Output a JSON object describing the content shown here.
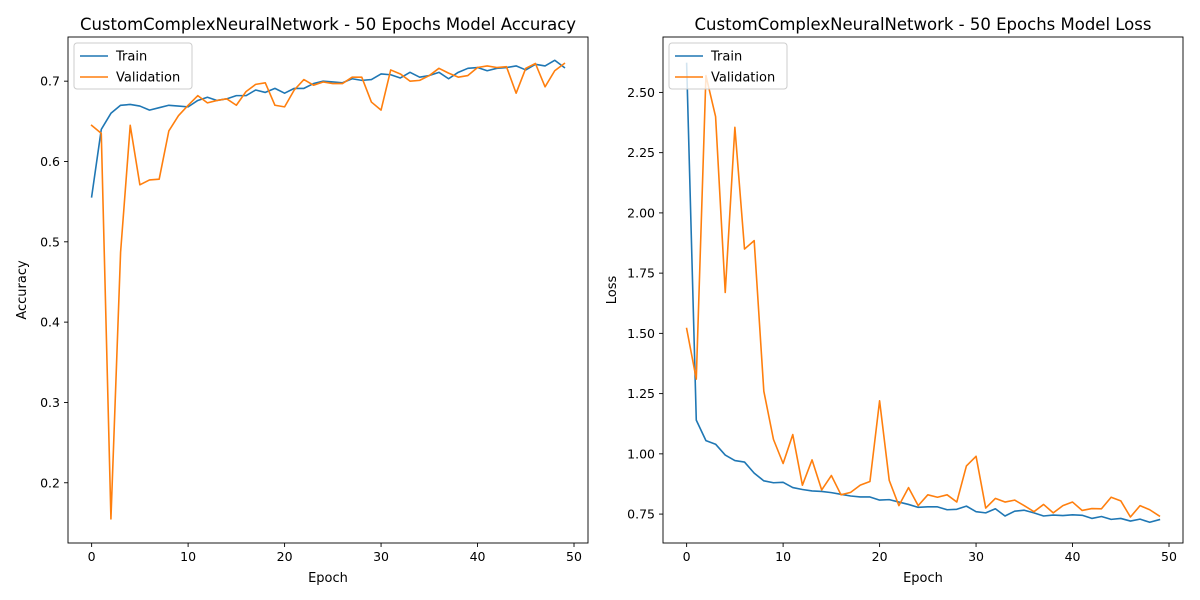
{
  "chart_data": [
    {
      "type": "line",
      "title": "CustomComplexNeuralNetwork - 50 Epochs Model Accuracy",
      "xlabel": "Epoch",
      "ylabel": "Accuracy",
      "xlim": [
        -2.45,
        51.45
      ],
      "ylim": [
        0.125,
        0.755
      ],
      "xticks": [
        0,
        10,
        20,
        30,
        40,
        50
      ],
      "xtick_labels": [
        "0",
        "10",
        "20",
        "30",
        "40",
        "50"
      ],
      "yticks": [
        0.2,
        0.3,
        0.4,
        0.5,
        0.6,
        0.7
      ],
      "ytick_labels": [
        "0.2",
        "0.3",
        "0.4",
        "0.5",
        "0.6",
        "0.7"
      ],
      "grid": false,
      "legend_position": "upper-left",
      "x": [
        0,
        1,
        2,
        3,
        4,
        5,
        6,
        7,
        8,
        9,
        10,
        11,
        12,
        13,
        14,
        15,
        16,
        17,
        18,
        19,
        20,
        21,
        22,
        23,
        24,
        25,
        26,
        27,
        28,
        29,
        30,
        31,
        32,
        33,
        34,
        35,
        36,
        37,
        38,
        39,
        40,
        41,
        42,
        43,
        44,
        45,
        46,
        47,
        48,
        49
      ],
      "series": [
        {
          "name": "Train",
          "color": "#1f77b4",
          "values": [
            0.556,
            0.64,
            0.66,
            0.67,
            0.671,
            0.669,
            0.664,
            0.667,
            0.67,
            0.669,
            0.668,
            0.676,
            0.68,
            0.676,
            0.678,
            0.682,
            0.682,
            0.689,
            0.686,
            0.691,
            0.685,
            0.691,
            0.691,
            0.697,
            0.7,
            0.699,
            0.698,
            0.703,
            0.701,
            0.702,
            0.709,
            0.708,
            0.704,
            0.711,
            0.705,
            0.707,
            0.711,
            0.703,
            0.711,
            0.716,
            0.717,
            0.713,
            0.716,
            0.717,
            0.719,
            0.714,
            0.721,
            0.719,
            0.726,
            0.717
          ]
        },
        {
          "name": "Validation",
          "color": "#ff7f0e",
          "values": [
            0.645,
            0.635,
            0.155,
            0.487,
            0.645,
            0.571,
            0.577,
            0.578,
            0.638,
            0.657,
            0.67,
            0.682,
            0.673,
            0.676,
            0.678,
            0.67,
            0.687,
            0.696,
            0.698,
            0.67,
            0.668,
            0.689,
            0.702,
            0.695,
            0.699,
            0.697,
            0.697,
            0.705,
            0.705,
            0.674,
            0.664,
            0.714,
            0.709,
            0.7,
            0.701,
            0.707,
            0.716,
            0.71,
            0.705,
            0.707,
            0.717,
            0.719,
            0.717,
            0.718,
            0.685,
            0.716,
            0.722,
            0.693,
            0.713,
            0.722
          ]
        }
      ]
    },
    {
      "type": "line",
      "title": "CustomComplexNeuralNetwork - 50 Epochs Model Loss",
      "xlabel": "Epoch",
      "ylabel": "Loss",
      "xlim": [
        -2.45,
        51.45
      ],
      "ylim": [
        0.63,
        2.73
      ],
      "xticks": [
        0,
        10,
        20,
        30,
        40,
        50
      ],
      "xtick_labels": [
        "0",
        "10",
        "20",
        "30",
        "40",
        "50"
      ],
      "yticks": [
        0.75,
        1.0,
        1.25,
        1.5,
        1.75,
        2.0,
        2.25,
        2.5
      ],
      "ytick_labels": [
        "0.75",
        "1.00",
        "1.25",
        "1.50",
        "1.75",
        "2.00",
        "2.25",
        "2.50"
      ],
      "grid": false,
      "legend_position": "upper-left",
      "x": [
        0,
        1,
        2,
        3,
        4,
        5,
        6,
        7,
        8,
        9,
        10,
        11,
        12,
        13,
        14,
        15,
        16,
        17,
        18,
        19,
        20,
        21,
        22,
        23,
        24,
        25,
        26,
        27,
        28,
        29,
        30,
        31,
        32,
        33,
        34,
        35,
        36,
        37,
        38,
        39,
        40,
        41,
        42,
        43,
        44,
        45,
        46,
        47,
        48,
        49
      ],
      "series": [
        {
          "name": "Train",
          "color": "#1f77b4",
          "values": [
            2.62,
            1.14,
            1.055,
            1.04,
            0.995,
            0.972,
            0.966,
            0.92,
            0.888,
            0.88,
            0.882,
            0.86,
            0.852,
            0.846,
            0.844,
            0.839,
            0.832,
            0.825,
            0.821,
            0.821,
            0.808,
            0.81,
            0.8,
            0.79,
            0.778,
            0.78,
            0.78,
            0.768,
            0.77,
            0.783,
            0.76,
            0.755,
            0.772,
            0.742,
            0.762,
            0.766,
            0.755,
            0.742,
            0.746,
            0.744,
            0.747,
            0.745,
            0.732,
            0.74,
            0.728,
            0.732,
            0.721,
            0.729,
            0.716,
            0.727
          ]
        },
        {
          "name": "Validation",
          "color": "#ff7f0e",
          "values": [
            1.52,
            1.31,
            2.57,
            2.4,
            1.67,
            2.355,
            1.85,
            1.885,
            1.26,
            1.06,
            0.96,
            1.08,
            0.87,
            0.975,
            0.85,
            0.91,
            0.83,
            0.84,
            0.87,
            0.885,
            1.22,
            0.89,
            0.785,
            0.86,
            0.785,
            0.83,
            0.82,
            0.83,
            0.8,
            0.95,
            0.99,
            0.775,
            0.815,
            0.8,
            0.808,
            0.785,
            0.76,
            0.79,
            0.755,
            0.785,
            0.8,
            0.765,
            0.773,
            0.772,
            0.82,
            0.805,
            0.738,
            0.785,
            0.768,
            0.742
          ]
        }
      ]
    }
  ]
}
